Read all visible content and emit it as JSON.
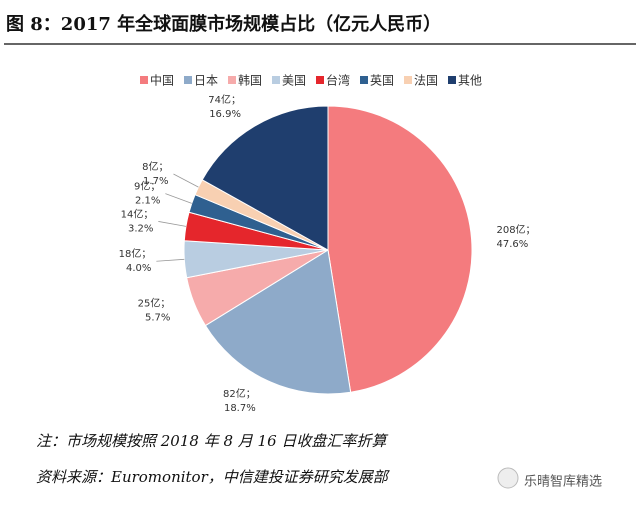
{
  "chart_data": {
    "type": "pie",
    "title": "图 8：2017 年全球面膜市场规模占比（亿元人民币）",
    "categories": [
      "中国",
      "日本",
      "韩国",
      "美国",
      "台湾",
      "英国",
      "法国",
      "其他"
    ],
    "values": [
      208,
      82,
      25,
      18,
      14,
      9,
      8,
      74
    ],
    "value_labels": [
      "208亿；",
      "82亿；",
      "25亿；",
      "18亿；",
      "14亿；",
      "9亿；",
      "8亿；",
      "74亿；"
    ],
    "shares": [
      47.6,
      18.7,
      5.7,
      4.0,
      3.2,
      2.1,
      1.7,
      16.9
    ],
    "share_labels": [
      "47.6%",
      "18.7%",
      "5.7%",
      "4.0%",
      "3.2%",
      "2.1%",
      "1.7%",
      "16.9%"
    ],
    "colors": [
      "#f47b7e",
      "#8eaac9",
      "#f6abab",
      "#b9cde1",
      "#e5262c",
      "#2f6090",
      "#f8d0b2",
      "#1f3e6e"
    ],
    "note": "注：市场规模按照 2018 年 8 月 16 日收盘汇率折算",
    "source": "资料来源：Euromonitor，中信建投证券研究发展部",
    "watermark": "乐晴智库精选"
  }
}
